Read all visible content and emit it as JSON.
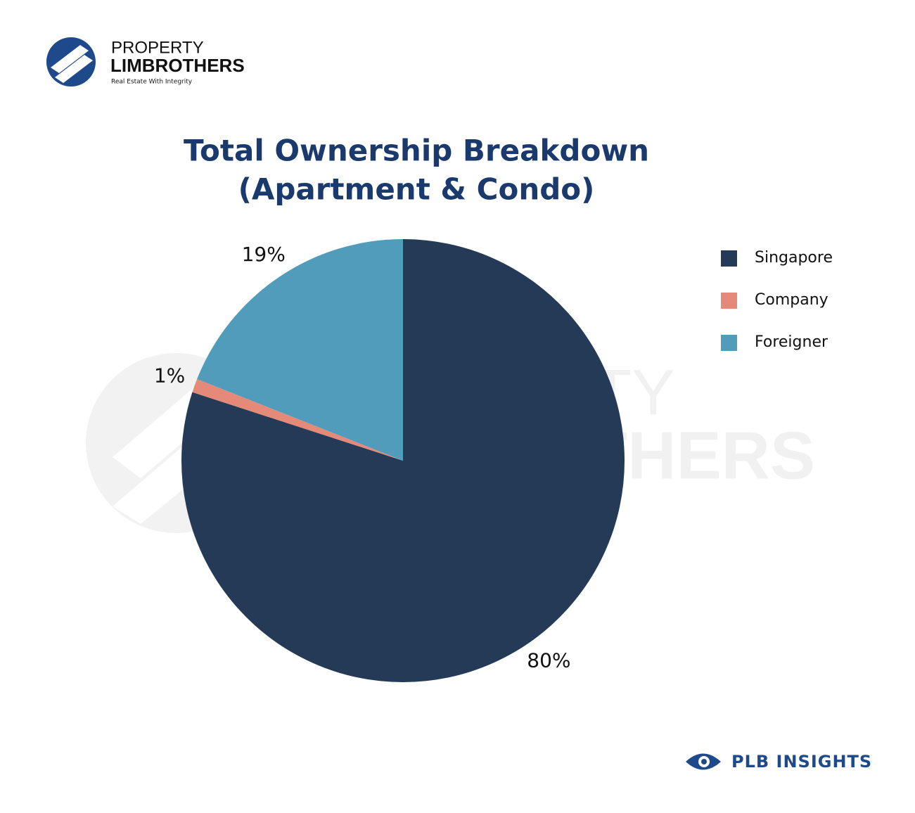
{
  "branding": {
    "logo_top": "PROPERTY",
    "logo_bottom": "LIMBROTHERS",
    "tagline": "Real Estate With Integrity",
    "footer": "PLB INSIGHTS"
  },
  "chart_data": {
    "type": "pie",
    "title": "Total Ownership Breakdown",
    "subtitle": "(Apartment & Condo)",
    "categories": [
      "Singapore",
      "Company",
      "Foreigner"
    ],
    "values": [
      80,
      1,
      19
    ],
    "value_labels": [
      "80%",
      "1%",
      "19%"
    ],
    "colors": [
      "#243a57",
      "#e58a78",
      "#519bbb"
    ]
  }
}
